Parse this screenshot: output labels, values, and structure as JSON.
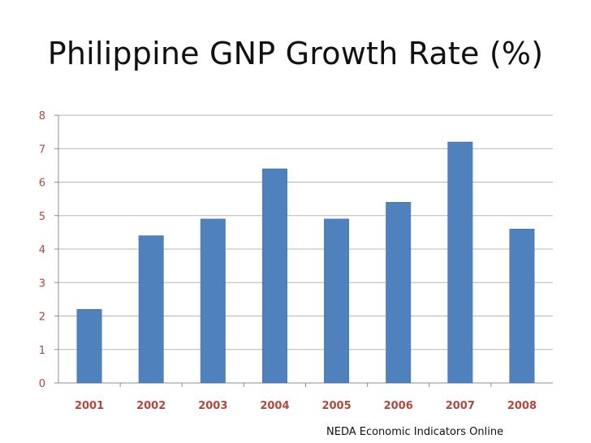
{
  "slide": {
    "title": "Philippine GNP Growth Rate (%)",
    "source_note": "NEDA Economic Indicators Online"
  },
  "colors": {
    "bar": "#4f81bd",
    "bar_stroke": "#3f6fa8",
    "tick_label": "#b0483f",
    "gridline": "#b7b7b7",
    "axis": "#8c8c8c"
  },
  "chart_data": {
    "type": "bar",
    "title": "",
    "xlabel": "",
    "ylabel": "",
    "categories": [
      "2001",
      "2002",
      "2003",
      "2004",
      "2005",
      "2006",
      "2007",
      "2008"
    ],
    "values": [
      2.2,
      4.4,
      4.9,
      6.4,
      4.9,
      5.4,
      7.2,
      4.6
    ],
    "ylim": [
      0,
      8
    ],
    "yticks": [
      "0",
      "1",
      "2",
      "3",
      "4",
      "5",
      "6",
      "7",
      "8"
    ],
    "grid": true,
    "legend": "none"
  }
}
